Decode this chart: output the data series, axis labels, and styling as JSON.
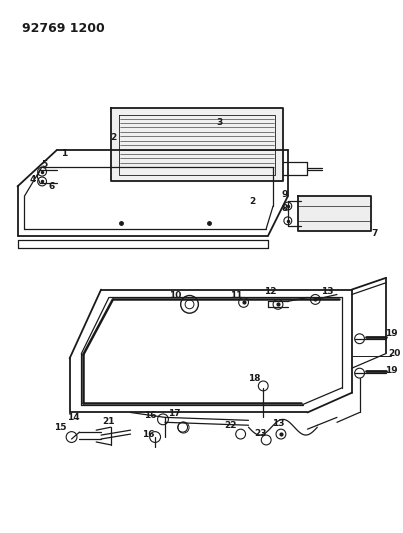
{
  "title": "92769 1200",
  "bg_color": "#ffffff",
  "line_color": "#1a1a1a",
  "title_fontsize": 9,
  "label_fontsize": 6.5,
  "figsize": [
    4.03,
    5.33
  ],
  "dpi": 100
}
